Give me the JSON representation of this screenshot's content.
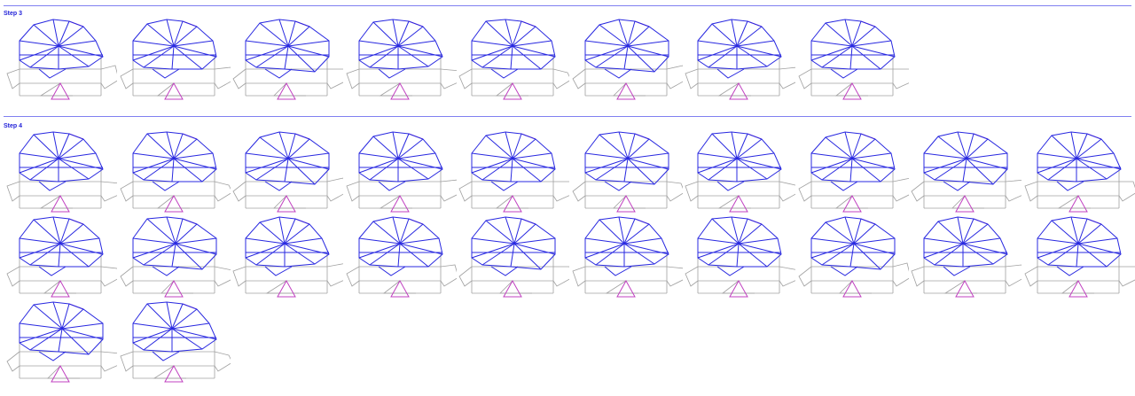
{
  "steps": [
    {
      "label": "Step 3",
      "tile_count": 8
    },
    {
      "label": "Step 4",
      "tile_count": 22
    }
  ],
  "colors": {
    "divider": "#8080f0",
    "label": "#1f1fd8",
    "top_layer": "#2828e0",
    "highlight": "#c040c0",
    "bottom_layer": "#a0a0a0"
  }
}
